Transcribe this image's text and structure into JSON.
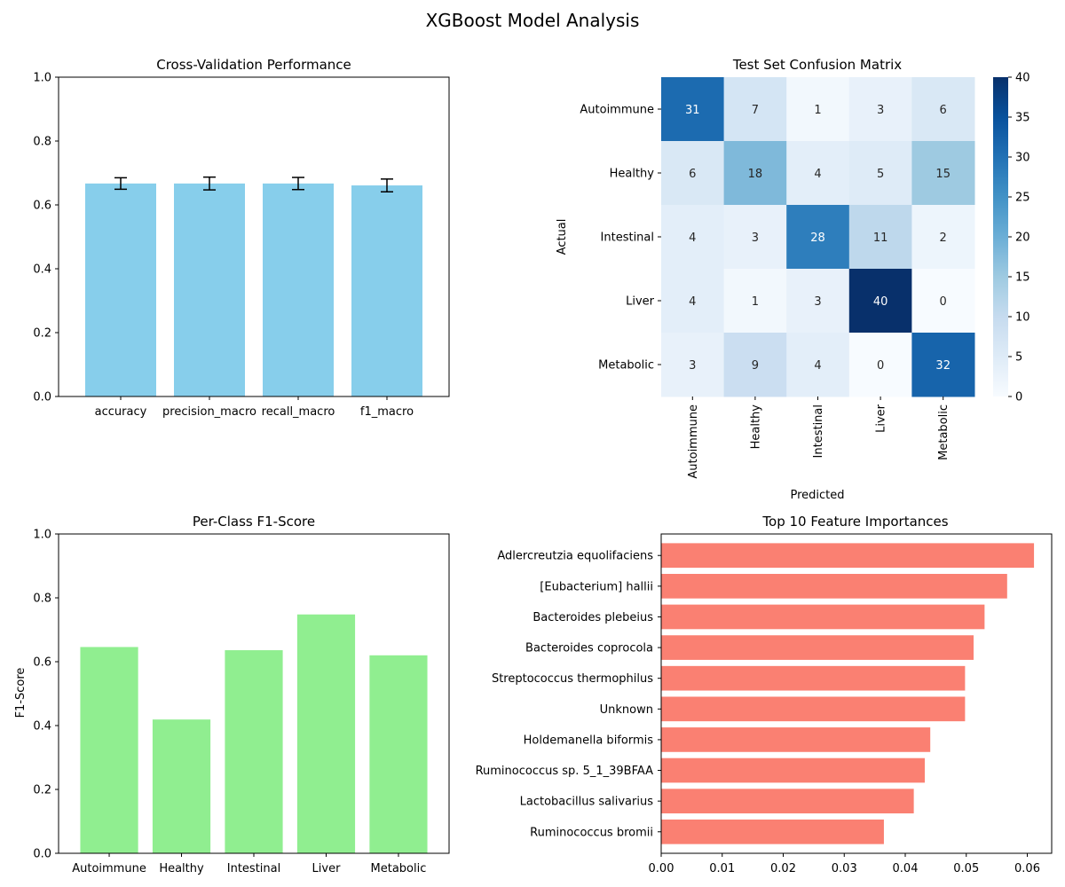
{
  "suptitle": "XGBoost Model Analysis",
  "chart_data": [
    {
      "type": "bar",
      "title": "Cross-Validation Performance",
      "xlabel": "",
      "ylabel": "",
      "categories": [
        "accuracy",
        "precision_macro",
        "recall_macro",
        "f1_macro"
      ],
      "values": [
        0.667,
        0.667,
        0.667,
        0.661
      ],
      "errors": [
        0.018,
        0.02,
        0.019,
        0.02
      ],
      "ylim": [
        0,
        1
      ],
      "yticks": [
        "0.0",
        "0.2",
        "0.4",
        "0.6",
        "0.8",
        "1.0"
      ],
      "color": "#87ceeb",
      "error_color": "#000000",
      "grid": false
    },
    {
      "type": "heatmap",
      "title": "Test Set Confusion Matrix",
      "xlabel": "Predicted",
      "ylabel": "Actual",
      "x_categories": [
        "Autoimmune",
        "Healthy",
        "Intestinal",
        "Liver",
        "Metabolic"
      ],
      "y_categories": [
        "Autoimmune",
        "Healthy",
        "Intestinal",
        "Liver",
        "Metabolic"
      ],
      "values": [
        [
          31,
          7,
          1,
          3,
          6
        ],
        [
          6,
          18,
          4,
          5,
          15
        ],
        [
          4,
          3,
          28,
          11,
          2
        ],
        [
          4,
          1,
          3,
          40,
          0
        ],
        [
          3,
          9,
          4,
          0,
          32
        ]
      ],
      "colormap": "Blues",
      "vmin": 0,
      "vmax": 40,
      "colorbar_ticks": [
        "0",
        "5",
        "10",
        "15",
        "20",
        "25",
        "30",
        "35",
        "40"
      ]
    },
    {
      "type": "bar",
      "title": "Per-Class F1-Score",
      "xlabel": "",
      "ylabel": "F1-Score",
      "categories": [
        "Autoimmune",
        "Healthy",
        "Intestinal",
        "Liver",
        "Metabolic"
      ],
      "values": [
        0.646,
        0.419,
        0.636,
        0.748,
        0.62
      ],
      "ylim": [
        0,
        1
      ],
      "yticks": [
        "0.0",
        "0.2",
        "0.4",
        "0.6",
        "0.8",
        "1.0"
      ],
      "color": "#90ee90",
      "grid": false
    },
    {
      "type": "bar",
      "orientation": "horizontal",
      "title": "Top 10 Feature Importances",
      "xlabel": "",
      "ylabel": "",
      "categories": [
        "Adlercreutzia equolifaciens",
        "[Eubacterium] hallii",
        "Bacteroides plebeius",
        "Bacteroides coprocola",
        "Streptococcus thermophilus",
        "Unknown",
        "Holdemanella biformis",
        "Ruminococcus sp. 5_1_39BFAA",
        "Lactobacillus salivarius",
        "Ruminococcus bromii"
      ],
      "values": [
        0.0611,
        0.0567,
        0.053,
        0.0512,
        0.0498,
        0.0498,
        0.0441,
        0.0432,
        0.0414,
        0.0365
      ],
      "xlim": [
        0,
        0.064
      ],
      "xticks": [
        "0.00",
        "0.01",
        "0.02",
        "0.03",
        "0.04",
        "0.05",
        "0.06"
      ],
      "color": "#fa8072",
      "grid": false
    }
  ]
}
